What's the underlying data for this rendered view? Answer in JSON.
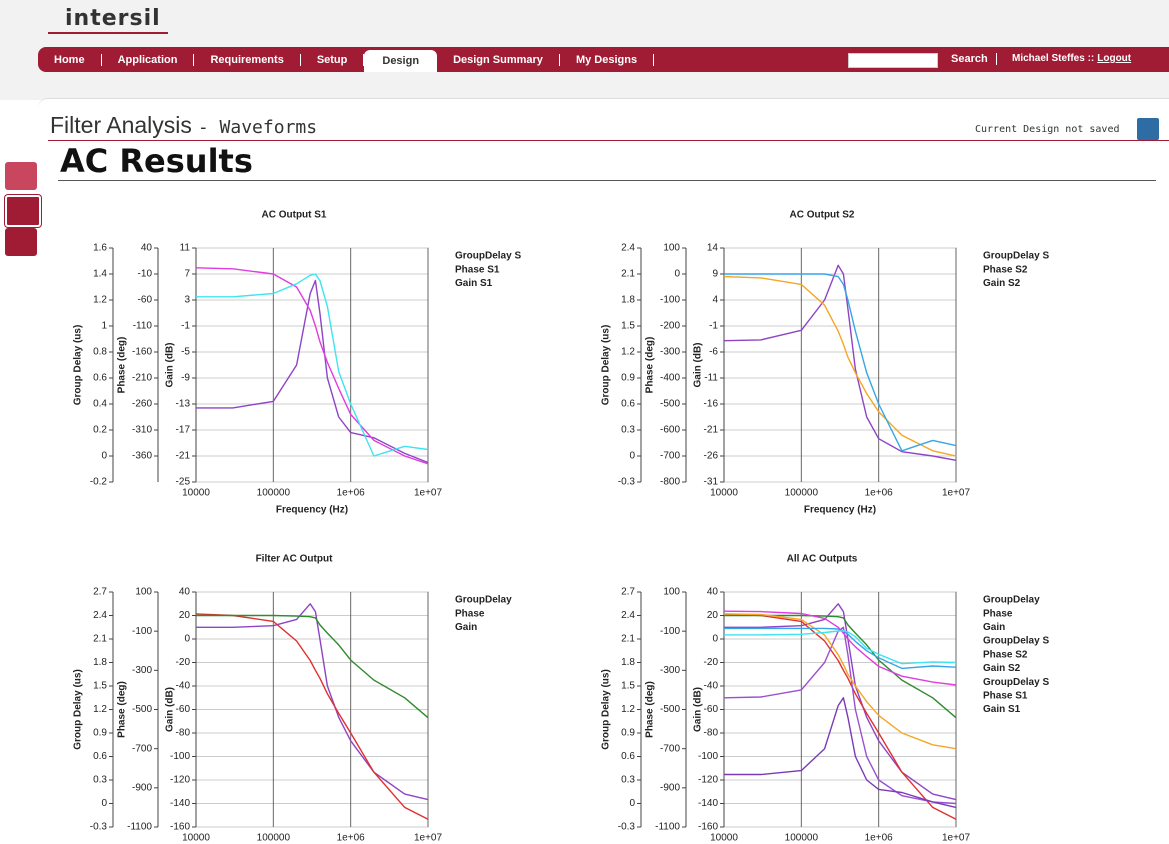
{
  "header": {
    "logo": "intersil",
    "nav": [
      "Home",
      "Application",
      "Requirements",
      "Setup",
      "Design",
      "Design Summary",
      "My Designs"
    ],
    "active": "Design",
    "search": "Search",
    "user": "Michael Steffes ::",
    "logout": "Logout"
  },
  "page": {
    "title": "Filter Analysis",
    "subtitle": "- Waveforms",
    "status": "Current Design not saved",
    "heading": "AC Results"
  },
  "chart_data": [
    {
      "type": "line",
      "title": "AC Output S1",
      "xlabel": "Frequency (Hz)",
      "ylabel": "Group Delay (us)",
      "y2label": "Phase (deg)",
      "y3label": "Gain (dB)",
      "xlog": true,
      "grid": true,
      "x": [
        10000,
        30000,
        100000,
        200000,
        300000,
        350000,
        400000,
        500000,
        700000,
        1000000,
        2000000,
        5000000,
        10000000
      ],
      "xlim": [
        10000,
        10000000
      ],
      "xticks": [
        10000,
        100000,
        {
          "value": 1000000,
          "label": "1e+06"
        },
        {
          "value": 10000000,
          "label": "1e+07"
        }
      ],
      "ylim": [
        -0.2,
        1.6
      ],
      "yticks": [
        1.6,
        1.4,
        1.2,
        1,
        0.8,
        0.6,
        0.4,
        0.2,
        0,
        -0.2
      ],
      "y2lim": [
        -410,
        40
      ],
      "y2ticks": [
        40,
        -10,
        -60,
        -110,
        -160,
        -210,
        -260,
        -310,
        -360
      ],
      "y3lim": [
        -25,
        11
      ],
      "y3ticks": [
        11,
        7,
        3,
        -1,
        -5,
        -9,
        -13,
        -17,
        -21,
        -25
      ],
      "series": [
        {
          "name": "GroupDelay S",
          "color": "#8e44c4",
          "axis": "y",
          "values": [
            0.37,
            0.37,
            0.42,
            0.7,
            1.25,
            1.35,
            1.1,
            0.6,
            0.3,
            0.18,
            0.14,
            0.02,
            -0.05
          ]
        },
        {
          "name": "Phase S1",
          "color": "#e03ce0",
          "axis": "y2",
          "values": [
            2,
            0,
            -10,
            -35,
            -80,
            -110,
            -140,
            -180,
            -230,
            -280,
            -330,
            -360,
            -375
          ]
        },
        {
          "name": "Gain S1",
          "color": "#3ee4f0",
          "axis": "y3",
          "values": [
            3.5,
            3.5,
            4,
            5.5,
            6.8,
            7,
            6,
            2,
            -8,
            -13,
            -21,
            -19.5,
            -20
          ]
        }
      ]
    },
    {
      "type": "line",
      "title": "AC Output S2",
      "xlabel": "Frequency (Hz)",
      "ylabel": "Group Delay (us)",
      "y2label": "Phase (deg)",
      "y3label": "Gain (dB)",
      "xlog": true,
      "grid": true,
      "x": [
        10000,
        30000,
        100000,
        200000,
        300000,
        350000,
        400000,
        500000,
        700000,
        1000000,
        2000000,
        5000000,
        10000000
      ],
      "xlim": [
        10000,
        10000000
      ],
      "xticks": [
        10000,
        100000,
        {
          "value": 1000000,
          "label": "1e+06"
        },
        {
          "value": 10000000,
          "label": "1e+07"
        }
      ],
      "ylim": [
        -0.3,
        2.4
      ],
      "yticks": [
        2.4,
        2.1,
        1.8,
        1.5,
        1.2,
        0.9,
        0.6,
        0.3,
        0,
        -0.3
      ],
      "y2lim": [
        -800,
        100
      ],
      "y2ticks": [
        100,
        0,
        -100,
        -200,
        -300,
        -400,
        -500,
        -600,
        -700,
        -800
      ],
      "y3lim": [
        -31,
        14
      ],
      "y3ticks": [
        14,
        9,
        4,
        -1,
        -6,
        -11,
        -16,
        -21,
        -26,
        -31
      ],
      "series": [
        {
          "name": "GroupDelay S",
          "color": "#8e44c4",
          "axis": "y",
          "values": [
            1.33,
            1.34,
            1.45,
            1.8,
            2.2,
            2.1,
            1.7,
            1.0,
            0.45,
            0.2,
            0.05,
            0,
            -0.05
          ]
        },
        {
          "name": "Phase S2",
          "color": "#f5a623",
          "axis": "y2",
          "values": [
            -10,
            -15,
            -40,
            -120,
            -220,
            -270,
            -320,
            -380,
            -460,
            -530,
            -620,
            -680,
            -700
          ]
        },
        {
          "name": "Gain S2",
          "color": "#36a6e6",
          "axis": "y3",
          "values": [
            9,
            9,
            9,
            9,
            8.5,
            7,
            4,
            -2,
            -10,
            -16,
            -25,
            -23,
            -24
          ]
        }
      ]
    },
    {
      "type": "line",
      "title": "Filter AC Output",
      "ylabel": "Group Delay (us)",
      "y2label": "Phase (deg)",
      "y3label": "Gain (dB)",
      "xlog": true,
      "grid": true,
      "x": [
        10000,
        30000,
        100000,
        200000,
        300000,
        350000,
        400000,
        500000,
        700000,
        1000000,
        2000000,
        5000000,
        10000000
      ],
      "xlim": [
        10000,
        10000000
      ],
      "xticks": [
        10000,
        100000,
        {
          "value": 1000000,
          "label": "1e+06"
        },
        {
          "value": 10000000,
          "label": "1e+07"
        }
      ],
      "ylim": [
        -0.3,
        2.7
      ],
      "yticks": [
        2.7,
        2.4,
        2.1,
        1.8,
        1.5,
        1.2,
        0.9,
        0.6,
        0.3,
        0,
        -0.3
      ],
      "y2lim": [
        -1100,
        100
      ],
      "y2ticks": [
        100,
        -100,
        -300,
        -500,
        -700,
        -900,
        -1100
      ],
      "y3lim": [
        -160,
        40
      ],
      "y3ticks": [
        40,
        20,
        0,
        -20,
        -40,
        -60,
        -80,
        -100,
        -120,
        -140,
        -160
      ],
      "series": [
        {
          "name": "GroupDelay",
          "color": "#8e44c4",
          "axis": "y",
          "values": [
            2.25,
            2.25,
            2.27,
            2.35,
            2.55,
            2.45,
            2.1,
            1.5,
            1.1,
            0.8,
            0.4,
            0.12,
            0.05
          ]
        },
        {
          "name": "Phase",
          "color": "#e03030",
          "axis": "y2",
          "values": [
            -12,
            -20,
            -50,
            -150,
            -250,
            -300,
            -340,
            -420,
            -520,
            -620,
            -820,
            -1000,
            -1060
          ]
        },
        {
          "name": "Gain",
          "color": "#2e8b2e",
          "axis": "y3",
          "values": [
            20,
            20,
            20,
            19.5,
            19,
            18,
            12,
            5,
            -5,
            -18,
            -35,
            -50,
            -67
          ]
        }
      ]
    },
    {
      "type": "line",
      "title": "All AC Outputs",
      "ylabel": "Group Delay (us)",
      "y2label": "Phase (deg)",
      "y3label": "Gain (dB)",
      "xlog": true,
      "grid": true,
      "x": [
        10000,
        30000,
        100000,
        200000,
        300000,
        350000,
        400000,
        500000,
        700000,
        1000000,
        2000000,
        5000000,
        10000000
      ],
      "xlim": [
        10000,
        10000000
      ],
      "xticks": [
        10000,
        100000,
        {
          "value": 1000000,
          "label": "1e+06"
        },
        {
          "value": 10000000,
          "label": "1e+07"
        }
      ],
      "ylim": [
        -0.3,
        2.7
      ],
      "yticks": [
        2.7,
        2.4,
        2.1,
        1.8,
        1.5,
        1.2,
        0.9,
        0.6,
        0.3,
        0,
        -0.3
      ],
      "y2lim": [
        -1100,
        100
      ],
      "y2ticks": [
        100,
        -100,
        -300,
        -500,
        -700,
        -900,
        -1100
      ],
      "y3lim": [
        -160,
        40
      ],
      "y3ticks": [
        40,
        20,
        0,
        -20,
        -40,
        -60,
        -80,
        -100,
        -120,
        -140,
        -160
      ],
      "series": [
        {
          "name": "GroupDelay",
          "color": "#8e44c4",
          "axis": "y",
          "values": [
            2.25,
            2.25,
            2.27,
            2.35,
            2.55,
            2.45,
            2.1,
            1.5,
            1.1,
            0.8,
            0.4,
            0.12,
            0.05
          ]
        },
        {
          "name": "Phase",
          "color": "#e03030",
          "axis": "y2",
          "values": [
            -12,
            -20,
            -50,
            -150,
            -250,
            -300,
            -340,
            -420,
            -520,
            -620,
            -820,
            -1000,
            -1060
          ]
        },
        {
          "name": "Gain",
          "color": "#2e8b2e",
          "axis": "y3",
          "values": [
            20,
            20,
            20,
            19.5,
            19,
            18,
            12,
            5,
            -5,
            -18,
            -35,
            -50,
            -67
          ]
        },
        {
          "name": "GroupDelay S",
          "color": "#9a50d0",
          "axis": "y",
          "values": [
            1.35,
            1.36,
            1.45,
            1.8,
            2.2,
            2.25,
            1.9,
            1.2,
            0.6,
            0.3,
            0.1,
            0.02,
            0
          ]
        },
        {
          "name": "Phase S2",
          "color": "#f5a623",
          "axis": "y2",
          "values": [
            -12,
            -15,
            -40,
            -120,
            -220,
            -270,
            -320,
            -380,
            -460,
            -530,
            -620,
            -680,
            -700
          ]
        },
        {
          "name": "Gain S2",
          "color": "#36a6e6",
          "axis": "y3",
          "values": [
            9,
            9,
            9,
            9,
            8.5,
            7,
            4,
            -2,
            -10,
            -16,
            -25,
            -23,
            -24
          ]
        },
        {
          "name": "GroupDelay S",
          "color": "#7a3ab8",
          "axis": "y",
          "values": [
            0.37,
            0.37,
            0.42,
            0.7,
            1.25,
            1.35,
            1.1,
            0.6,
            0.3,
            0.18,
            0.14,
            0.02,
            -0.05
          ]
        },
        {
          "name": "Phase S1",
          "color": "#e03ce0",
          "axis": "y2",
          "values": [
            2,
            0,
            -10,
            -35,
            -80,
            -110,
            -140,
            -180,
            -230,
            -280,
            -330,
            -360,
            -375
          ]
        },
        {
          "name": "Gain S1",
          "color": "#3ee4f0",
          "axis": "y3",
          "values": [
            3.5,
            3.5,
            4,
            5.5,
            6.8,
            7,
            6,
            2,
            -8,
            -13,
            -21,
            -19.5,
            -20
          ]
        }
      ]
    }
  ]
}
